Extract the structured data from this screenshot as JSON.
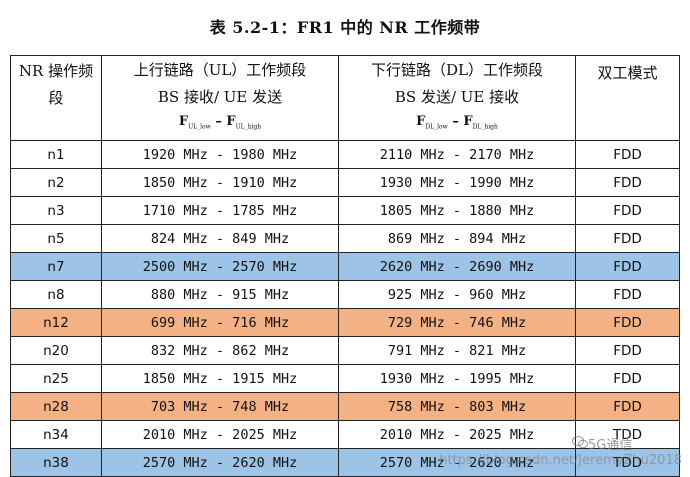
{
  "title": "表 5.2-1：FR1 中的 NR 工作频带",
  "header": {
    "col1_line1": "NR 操作频",
    "col1_line2": "段",
    "col2_line1": "上行链路（UL）工作频段",
    "col2_line2": "BS 接收/ UE 发送",
    "col2_formula": "FUL_low - FUL_high",
    "col3_line1": "下行链路（DL）工作频段",
    "col3_line2": "BS 发送/ UE 接收",
    "col3_formula": "FDL_low - FDL_high",
    "col4": "双工模式"
  },
  "rows": [
    {
      "band": "n1",
      "ul": "1920 MHz - 1980 MHz",
      "dl": "2110 MHz - 2170 MHz",
      "duplex": "FDD",
      "highlight": "none"
    },
    {
      "band": "n2",
      "ul": "1850 MHz - 1910 MHz",
      "dl": "1930 MHz - 1990 MHz",
      "duplex": "FDD",
      "highlight": "none"
    },
    {
      "band": "n3",
      "ul": "1710 MHz - 1785 MHz",
      "dl": "1805 MHz - 1880 MHz",
      "duplex": "FDD",
      "highlight": "none"
    },
    {
      "band": "n5",
      "ul": "824 MHz - 849 MHz",
      "dl": "869 MHz - 894 MHz",
      "duplex": "FDD",
      "highlight": "none"
    },
    {
      "band": "n7",
      "ul": "2500 MHz - 2570 MHz",
      "dl": "2620 MHz - 2690 MHz",
      "duplex": "FDD",
      "highlight": "blue"
    },
    {
      "band": "n8",
      "ul": "880 MHz - 915 MHz",
      "dl": "925 MHz - 960 MHz",
      "duplex": "FDD",
      "highlight": "none"
    },
    {
      "band": "n12",
      "ul": "699 MHz - 716 MHz",
      "dl": "729 MHz - 746 MHz",
      "duplex": "FDD",
      "highlight": "orange"
    },
    {
      "band": "n20",
      "ul": "832 MHz - 862 MHz",
      "dl": "791 MHz - 821 MHz",
      "duplex": "FDD",
      "highlight": "none"
    },
    {
      "band": "n25",
      "ul": "1850 MHz - 1915 MHz",
      "dl": "1930 MHz - 1995 MHz",
      "duplex": "FDD",
      "highlight": "none"
    },
    {
      "band": "n28",
      "ul": "703 MHz - 748 MHz",
      "dl": "758 MHz - 803 MHz",
      "duplex": "FDD",
      "highlight": "orange"
    },
    {
      "band": "n34",
      "ul": "2010 MHz - 2025 MHz",
      "dl": "2010 MHz - 2025 MHz",
      "duplex": "TDD",
      "highlight": "none"
    },
    {
      "band": "n38",
      "ul": "2570 MHz - 2620 MHz",
      "dl": "2570 MHz - 2620 MHz",
      "duplex": "TDD",
      "highlight": "blue"
    }
  ],
  "colors": {
    "highlight_blue": "#9dc3e6",
    "highlight_orange": "#f4b183"
  },
  "watermark": {
    "brand": "5G通信",
    "url": "https://blog.csdn.net/JeremyZhu2018"
  }
}
